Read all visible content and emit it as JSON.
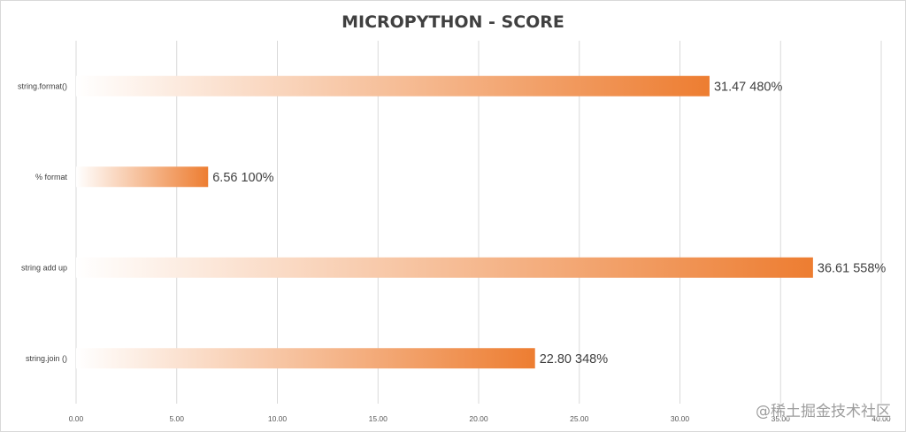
{
  "chart_data": {
    "type": "bar",
    "orientation": "horizontal",
    "title": "MICROPYTHON - SCORE",
    "xlabel": "",
    "ylabel": "",
    "xlim": [
      0,
      40
    ],
    "x_ticks": [
      "0.00",
      "5.00",
      "10.00",
      "15.00",
      "20.00",
      "25.00",
      "30.00",
      "35.00",
      "40.00"
    ],
    "grid": true,
    "legend": "none",
    "categories": [
      "string.format()",
      "% format",
      "string add up",
      "string.join ()"
    ],
    "values": [
      31.47,
      6.56,
      36.61,
      22.8
    ],
    "data_labels": [
      "31.47",
      "6.56",
      "36.61",
      "22.80"
    ],
    "percent_labels": [
      "480%",
      "100%",
      "558%",
      "348%"
    ],
    "colors": {
      "bar": "#ed7d31",
      "bar_fade": "#ffffff",
      "grid": "#d9d9d9",
      "text": "#404040"
    }
  },
  "watermark": "@稀土掘金技术社区"
}
